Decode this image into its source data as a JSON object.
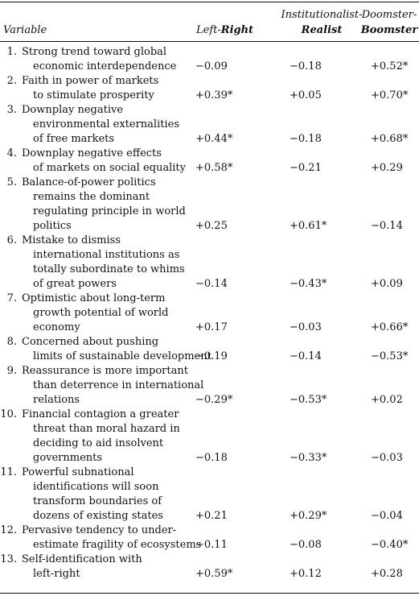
{
  "headers": {
    "variable": "Variable",
    "left_right_a": "Left-",
    "left_right_b": "Right",
    "inst_a": "Institutionalist-",
    "inst_b": "Realist",
    "doom_a": "Doomster-",
    "doom_b": "Boomster"
  },
  "rows": [
    {
      "num": "1.",
      "lines": [
        "Strong trend toward global",
        "economic interdependence"
      ],
      "lr": "−0.09",
      "ir": "−0.18",
      "db": "+0.52*"
    },
    {
      "num": "2.",
      "lines": [
        "Faith in power of markets",
        "to stimulate prosperity"
      ],
      "lr": "+0.39*",
      "ir": "+0.05",
      "db": "+0.70*"
    },
    {
      "num": "3.",
      "lines": [
        "Downplay negative",
        "environmental externalities",
        "of free markets"
      ],
      "lr": "+0.44*",
      "ir": "−0.18",
      "db": "+0.68*"
    },
    {
      "num": "4.",
      "lines": [
        "Downplay negative effects",
        "of markets on social equality"
      ],
      "lr": "+0.58*",
      "ir": "−0.21",
      "db": "+0.29"
    },
    {
      "num": "5.",
      "lines": [
        "Balance-of-power politics",
        "remains the dominant",
        "regulating principle in world",
        "politics"
      ],
      "lr": "+0.25",
      "ir": "+0.61*",
      "db": "−0.14"
    },
    {
      "num": "6.",
      "lines": [
        "Mistake to dismiss",
        "international institutions as",
        "totally subordinate to whims",
        "of great powers"
      ],
      "lr": "−0.14",
      "ir": "−0.43*",
      "db": "+0.09"
    },
    {
      "num": "7.",
      "lines": [
        "Optimistic about long-term",
        "growth potential of world",
        "economy"
      ],
      "lr": "+0.17",
      "ir": "−0.03",
      "db": "+0.66*"
    },
    {
      "num": "8.",
      "lines": [
        "Concerned about pushing",
        "limits of sustainable development"
      ],
      "lr": "−0.19",
      "ir": "−0.14",
      "db": "−0.53*"
    },
    {
      "num": "9.",
      "lines": [
        "Reassurance is more important",
        "than deterrence in international",
        "relations"
      ],
      "lr": "−0.29*",
      "ir": "−0.53*",
      "db": "+0.02"
    },
    {
      "num": "10.",
      "lines": [
        "Financial contagion a greater",
        "threat than moral hazard in",
        "deciding to aid insolvent",
        "governments"
      ],
      "lr": "−0.18",
      "ir": "−0.33*",
      "db": "−0.03"
    },
    {
      "num": "11.",
      "lines": [
        "Powerful subnational",
        "identifications will soon",
        "transform boundaries of",
        "dozens of existing states"
      ],
      "lr": "+0.21",
      "ir": "+0.29*",
      "db": "−0.04"
    },
    {
      "num": "12.",
      "lines": [
        "Pervasive tendency to under-",
        "estimate fragility of ecosystems"
      ],
      "lr": "−0.11",
      "ir": "−0.08",
      "db": "−0.40*"
    },
    {
      "num": "13.",
      "lines": [
        "Self-identification with",
        "left-right"
      ],
      "lr": "+0.59*",
      "ir": "+0.12",
      "db": "+0.28"
    }
  ]
}
